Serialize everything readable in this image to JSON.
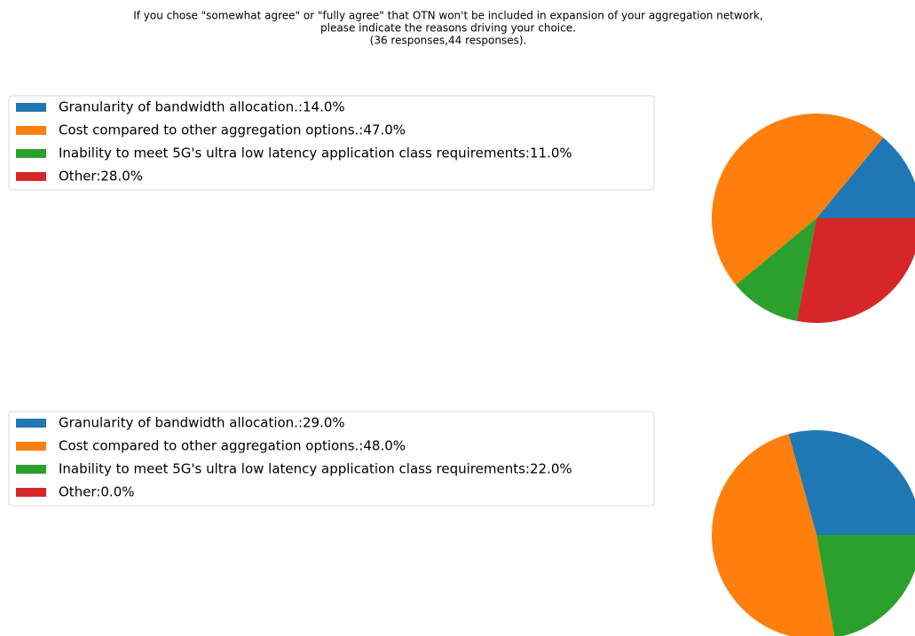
{
  "title": [
    "If you chose \"somewhat agree\" or \"fully agree\" that OTN won't be included in expansion of your aggregation network,",
    "please indicate the reasons driving your choice.",
    "(36 responses,44 responses)."
  ],
  "chart_data": [
    {
      "type": "pie",
      "categories": [
        "Granularity of bandwidth allocation.:14.0%",
        "Cost compared to other aggregation options.:47.0%",
        "Inability to meet 5G's ultra low latency application class requirements:11.0%",
        "Other:28.0%"
      ],
      "values": [
        14,
        47,
        11,
        28
      ],
      "colors": [
        "#1f77b4",
        "#ff7f0e",
        "#2ca02c",
        "#d62728"
      ],
      "legend": "upper left"
    },
    {
      "type": "pie",
      "categories": [
        "Granularity of bandwidth allocation.:29.0%",
        "Cost compared to other aggregation options.:48.0%",
        "Inability to meet 5G's ultra low latency application class requirements:22.0%",
        "Other:0.0%"
      ],
      "values": [
        29,
        48,
        22,
        0
      ],
      "colors": [
        "#1f77b4",
        "#ff7f0e",
        "#2ca02c",
        "#d62728"
      ],
      "legend": "upper left"
    }
  ]
}
